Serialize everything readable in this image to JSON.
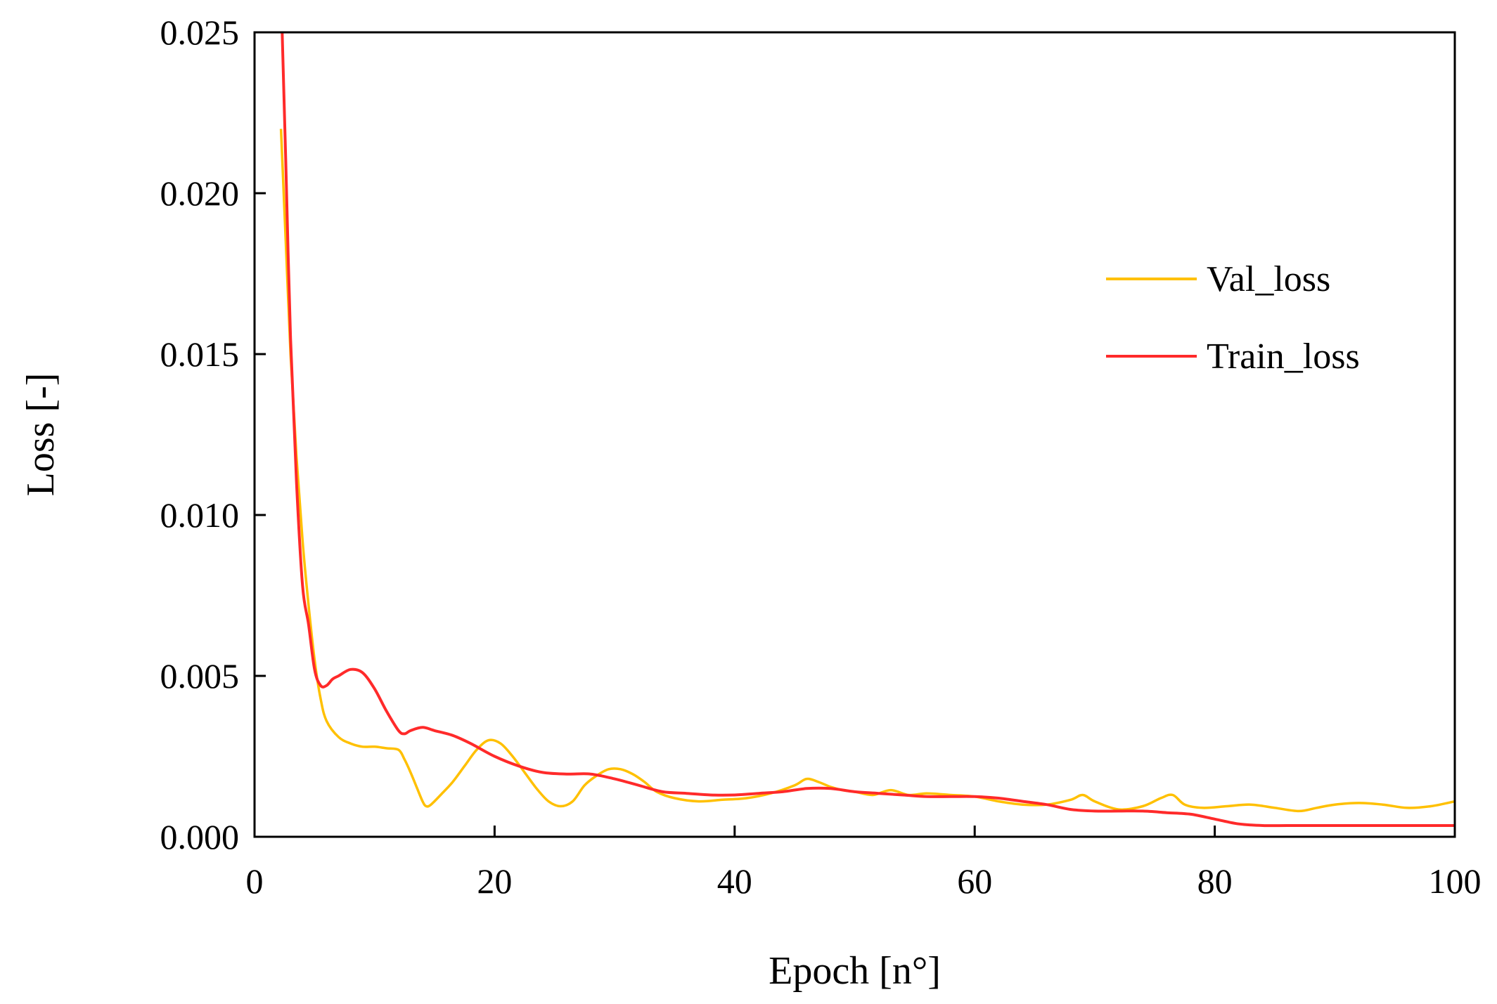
{
  "chart_data": {
    "type": "line",
    "title": "",
    "xlabel": "Epoch [n°]",
    "ylabel": "Loss [-]",
    "xlim": [
      0,
      100
    ],
    "ylim": [
      0,
      0.025
    ],
    "xticks": [
      0,
      20,
      40,
      60,
      80,
      100
    ],
    "xtick_labels": [
      "0",
      "20",
      "40",
      "60",
      "80",
      "100"
    ],
    "yticks": [
      0,
      0.005,
      0.01,
      0.015,
      0.02,
      0.025
    ],
    "ytick_labels": [
      "0.000",
      "0.005",
      "0.010",
      "0.015",
      "0.020",
      "0.025"
    ],
    "grid": false,
    "legend_position": "right",
    "series": [
      {
        "name": "Val_loss",
        "color": "#FFC000",
        "x": [
          2.2,
          2.6,
          3.0,
          3.5,
          4.0,
          4.5,
          5.0,
          5.5,
          6.0,
          7.0,
          8.0,
          9.0,
          10.0,
          11.0,
          12.0,
          12.5,
          13.0,
          13.5,
          14.0,
          14.3,
          14.7,
          15.5,
          16.5,
          17.5,
          18.5,
          19.5,
          20.5,
          21.5,
          22.5,
          23.5,
          24.5,
          25.5,
          26.5,
          27.5,
          28.5,
          29.5,
          30.5,
          31.5,
          32.5,
          33.5,
          35.0,
          37.0,
          39.0,
          41.0,
          43.0,
          45.0,
          46.0,
          47.0,
          48.0,
          49.0,
          50.0,
          51.5,
          53.0,
          54.5,
          56.0,
          58.0,
          60.0,
          62.0,
          64.0,
          66.0,
          68.0,
          69.0,
          70.0,
          72.0,
          74.0,
          75.5,
          76.5,
          77.5,
          79.0,
          81.0,
          83.0,
          85.0,
          87.0,
          88.5,
          90.0,
          92.0,
          94.0,
          96.0,
          98.0,
          100.0
        ],
        "y": [
          0.022,
          0.0185,
          0.015,
          0.0118,
          0.0092,
          0.0072,
          0.0055,
          0.0043,
          0.0036,
          0.0031,
          0.0029,
          0.0028,
          0.0028,
          0.00275,
          0.0027,
          0.0024,
          0.002,
          0.00155,
          0.0011,
          0.00095,
          0.001,
          0.0013,
          0.0017,
          0.0022,
          0.0027,
          0.003,
          0.0029,
          0.0025,
          0.002,
          0.0015,
          0.0011,
          0.00095,
          0.0011,
          0.0016,
          0.0019,
          0.0021,
          0.0021,
          0.00195,
          0.0017,
          0.0014,
          0.0012,
          0.0011,
          0.00115,
          0.0012,
          0.00135,
          0.0016,
          0.0018,
          0.0017,
          0.00155,
          0.00145,
          0.0014,
          0.0013,
          0.00145,
          0.0013,
          0.00135,
          0.0013,
          0.00125,
          0.0011,
          0.001,
          0.001,
          0.00115,
          0.0013,
          0.0011,
          0.00085,
          0.00095,
          0.0012,
          0.0013,
          0.001,
          0.0009,
          0.00095,
          0.001,
          0.0009,
          0.0008,
          0.0009,
          0.001,
          0.00105,
          0.001,
          0.0009,
          0.00095,
          0.0011
        ]
      },
      {
        "name": "Train_loss",
        "color": "#FF2A2A",
        "x": [
          2.3,
          2.6,
          3.0,
          3.5,
          4.0,
          4.5,
          5.0,
          5.5,
          6.0,
          6.5,
          7.0,
          8.0,
          9.0,
          10.0,
          11.0,
          12.0,
          12.5,
          13.0,
          14.0,
          15.0,
          16.5,
          18.0,
          20.0,
          22.0,
          24.0,
          26.0,
          28.0,
          30.0,
          32.0,
          34.0,
          36.0,
          38.0,
          40.0,
          42.0,
          44.0,
          46.0,
          48.0,
          50.0,
          52.0,
          54.0,
          56.0,
          58.0,
          60.0,
          62.0,
          64.0,
          66.0,
          68.0,
          70.0,
          72.0,
          74.0,
          76.0,
          78.0,
          80.0,
          82.0,
          84.0,
          86.0,
          88.0,
          90.0,
          92.0,
          94.0,
          96.0,
          98.0,
          100.0
        ],
        "y": [
          0.025,
          0.021,
          0.0155,
          0.011,
          0.0078,
          0.0066,
          0.0052,
          0.0047,
          0.0047,
          0.0049,
          0.005,
          0.0052,
          0.0051,
          0.0046,
          0.0039,
          0.0033,
          0.0032,
          0.0033,
          0.0034,
          0.0033,
          0.00315,
          0.0029,
          0.0025,
          0.0022,
          0.002,
          0.00195,
          0.00195,
          0.0018,
          0.0016,
          0.0014,
          0.00135,
          0.0013,
          0.0013,
          0.00135,
          0.0014,
          0.0015,
          0.0015,
          0.0014,
          0.00135,
          0.0013,
          0.00125,
          0.00125,
          0.00125,
          0.0012,
          0.0011,
          0.001,
          0.00085,
          0.0008,
          0.0008,
          0.0008,
          0.00075,
          0.0007,
          0.00055,
          0.0004,
          0.00035,
          0.00035,
          0.00035,
          0.00035,
          0.00035,
          0.00035,
          0.00035,
          0.00035,
          0.00035
        ]
      }
    ]
  }
}
